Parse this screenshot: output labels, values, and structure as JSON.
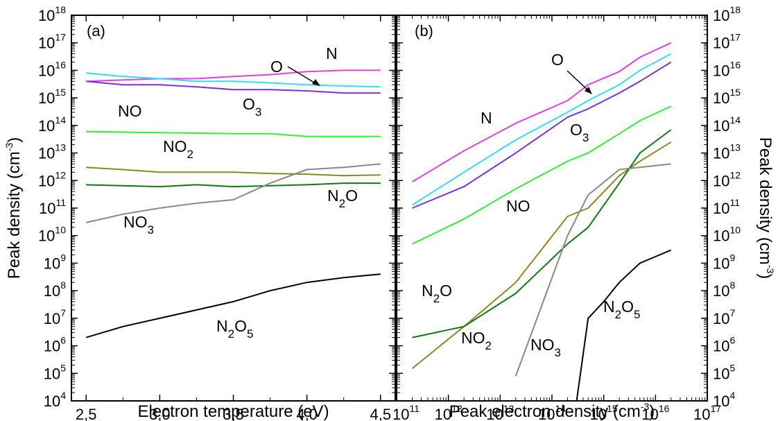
{
  "chart_data": [
    {
      "type": "line",
      "panel_label": "(a)",
      "xlabel": "Electron temperature (eV)",
      "ylabel": "Peak density (cm⁻³)",
      "ylabel_text": "Peak density (cm",
      "ylabel_sup": "-3",
      "ylabel_close": ")",
      "xscale": "linear",
      "yscale": "log",
      "xlim": [
        2.4,
        4.6
      ],
      "ylim": [
        10000,
        1e+18
      ],
      "grid": false,
      "legend": "none (species labeled directly on curves)",
      "x_ticks": [
        "2,5",
        "3,0",
        "3,5",
        "4,0",
        "4,5"
      ],
      "x_tick_values": [
        2.5,
        3.0,
        3.5,
        4.0,
        4.5
      ],
      "series": [
        {
          "name": "N",
          "color": "#e040e0",
          "x": [
            2.5,
            3.0,
            3.25,
            3.5,
            3.75,
            4.0,
            4.25,
            4.5
          ],
          "y": [
            4000000000000000.0,
            5000000000000000.0,
            5000000000000000.0,
            6000000000000000.0,
            7000000000000000.0,
            9000000000000000.0,
            1e+16,
            1e+16
          ]
        },
        {
          "name": "O",
          "color": "#33ddee",
          "x": [
            2.5,
            2.75,
            3.0,
            3.25,
            3.5,
            3.75,
            4.0,
            4.25,
            4.5
          ],
          "y": [
            8000000000000000.0,
            6000000000000000.0,
            5000000000000000.0,
            4000000000000000.0,
            4000000000000000.0,
            3500000000000000.0,
            3000000000000000.0,
            2700000000000000.0,
            2500000000000000.0
          ]
        },
        {
          "name": "O3",
          "color": "#7733dd",
          "x": [
            2.5,
            2.75,
            3.0,
            3.25,
            3.5,
            3.75,
            4.0,
            4.25,
            4.5
          ],
          "y": [
            4000000000000000.0,
            3000000000000000.0,
            3000000000000000.0,
            2500000000000000.0,
            2000000000000000.0,
            2000000000000000.0,
            1800000000000000.0,
            1500000000000000.0,
            1500000000000000.0
          ]
        },
        {
          "name": "NO",
          "color": "#33ee33",
          "x": [
            2.5,
            3.0,
            3.5,
            3.75,
            4.0,
            4.5
          ],
          "y": [
            60000000000000.0,
            55000000000000.0,
            50000000000000.0,
            50000000000000.0,
            40000000000000.0,
            40000000000000.0
          ]
        },
        {
          "name": "NO2",
          "color": "#888822",
          "x": [
            2.5,
            2.75,
            3.0,
            3.25,
            3.5,
            3.75,
            4.0,
            4.25,
            4.5
          ],
          "y": [
            3000000000000.0,
            2500000000000.0,
            2000000000000.0,
            2000000000000.0,
            2000000000000.0,
            1800000000000.0,
            1700000000000.0,
            1500000000000.0,
            1600000000000.0
          ]
        },
        {
          "name": "N2O",
          "color": "#117711",
          "x": [
            2.5,
            3.0,
            3.25,
            3.5,
            4.0,
            4.25,
            4.5
          ],
          "y": [
            700000000000.0,
            600000000000.0,
            700000000000.0,
            600000000000.0,
            700000000000.0,
            800000000000.0,
            800000000000.0
          ]
        },
        {
          "name": "NO3",
          "color": "#888888",
          "x": [
            2.5,
            2.75,
            3.0,
            3.25,
            3.5,
            3.75,
            4.0,
            4.25,
            4.5
          ],
          "y": [
            30000000000.0,
            60000000000.0,
            100000000000.0,
            150000000000.0,
            200000000000.0,
            800000000000.0,
            2500000000000.0,
            3000000000000.0,
            4000000000000.0
          ]
        },
        {
          "name": "N2O5",
          "color": "#000000",
          "x": [
            2.5,
            2.75,
            3.0,
            3.25,
            3.5,
            3.75,
            4.0,
            4.25,
            4.5
          ],
          "y": [
            2000000.0,
            5000000.0,
            10000000.0,
            20000000.0,
            40000000.0,
            100000000.0,
            200000000.0,
            300000000.0,
            400000000.0
          ]
        }
      ],
      "labels": [
        {
          "base": "O",
          "sub1": "",
          "mid": "",
          "sub2": ""
        },
        {
          "base": "N",
          "sub1": "",
          "mid": "",
          "sub2": ""
        },
        {
          "base": "O",
          "sub1": "3",
          "mid": "",
          "sub2": ""
        },
        {
          "base": "NO",
          "sub1": "",
          "mid": "",
          "sub2": ""
        },
        {
          "base": "NO",
          "sub1": "2",
          "mid": "",
          "sub2": ""
        },
        {
          "base": "N",
          "sub1": "2",
          "mid": "O",
          "sub2": ""
        },
        {
          "base": "NO",
          "sub1": "3",
          "mid": "",
          "sub2": ""
        },
        {
          "base": "N",
          "sub1": "2",
          "mid": "O",
          "sub2": "5"
        }
      ]
    },
    {
      "type": "line",
      "panel_label": "(b)",
      "xlabel": "Peak electron density (cm⁻³)",
      "xlabel_text": "Peak electron density (cm",
      "xlabel_sup": "-3",
      "xlabel_close": ")",
      "ylabel": "Peak density (cm⁻³)",
      "ylabel_text": "Peak density (cm",
      "ylabel_sup": "-3",
      "ylabel_close": ")",
      "xscale": "log",
      "yscale": "log",
      "xlim": [
        100000000000.0,
        1e+17
      ],
      "ylim": [
        10000,
        1e+18
      ],
      "grid": false,
      "legend": "none (species labeled directly on curves)",
      "x_ticks_exp": [
        "11",
        "12",
        "13",
        "14",
        "15",
        "16",
        "17"
      ],
      "y_ticks_exp": [
        "4",
        "5",
        "6",
        "7",
        "8",
        "9",
        "10",
        "11",
        "12",
        "13",
        "14",
        "15",
        "16",
        "17",
        "18"
      ],
      "tick_base": "10",
      "series": [
        {
          "name": "N",
          "color": "#e040e0",
          "x": [
            200000000000.0,
            2000000000000.0,
            20000000000000.0,
            200000000000000.0,
            500000000000000.0,
            2000000000000000.0,
            5000000000000000.0,
            2e+16
          ],
          "y": [
            900000000000.0,
            12000000000000.0,
            120000000000000.0,
            800000000000000.0,
            3000000000000000.0,
            9000000000000000.0,
            3e+16,
            1e+17
          ]
        },
        {
          "name": "O",
          "color": "#33ddee",
          "x": [
            200000000000.0,
            2000000000000.0,
            20000000000000.0,
            200000000000000.0,
            500000000000000.0,
            2000000000000000.0,
            5000000000000000.0,
            2e+16
          ],
          "y": [
            130000000000.0,
            2000000000000.0,
            30000000000000.0,
            300000000000000.0,
            800000000000000.0,
            3000000000000000.0,
            1e+16,
            4e+16
          ]
        },
        {
          "name": "O3",
          "color": "#7733dd",
          "x": [
            200000000000.0,
            2000000000000.0,
            20000000000000.0,
            200000000000000.0,
            500000000000000.0,
            2000000000000000.0,
            5000000000000000.0,
            2e+16
          ],
          "y": [
            100000000000.0,
            600000000000.0,
            10000000000000.0,
            200000000000000.0,
            400000000000000.0,
            1500000000000000.0,
            4000000000000000.0,
            2e+16
          ]
        },
        {
          "name": "NO",
          "color": "#33ee33",
          "x": [
            200000000000.0,
            2000000000000.0,
            20000000000000.0,
            200000000000000.0,
            500000000000000.0,
            2000000000000000.0,
            5000000000000000.0,
            2e+16
          ],
          "y": [
            5000000000.0,
            40000000000.0,
            500000000000.0,
            5000000000000.0,
            10000000000000.0,
            50000000000000.0,
            150000000000000.0,
            500000000000000.0
          ]
        },
        {
          "name": "NO2",
          "color": "#888822",
          "x": [
            200000000000.0,
            2000000000000.0,
            20000000000000.0,
            200000000000000.0,
            500000000000000.0,
            2000000000000000.0,
            5000000000000000.0,
            2e+16
          ],
          "y": [
            150000.0,
            5000000.0,
            200000000.0,
            50000000000.0,
            100000000000.0,
            1500000000000.0,
            5000000000000.0,
            25000000000000.0
          ]
        },
        {
          "name": "N2O",
          "color": "#117711",
          "x": [
            200000000000.0,
            2000000000000.0,
            20000000000000.0,
            200000000000000.0,
            500000000000000.0,
            2000000000000000.0,
            5000000000000000.0,
            2e+16
          ],
          "y": [
            2000000.0,
            5000000.0,
            80000000.0,
            5000000000.0,
            20000000000.0,
            800000000000.0,
            10000000000000.0,
            70000000000000.0
          ]
        },
        {
          "name": "NO3",
          "color": "#888888",
          "x": [
            20000000000000.0,
            200000000000000.0,
            500000000000000.0,
            2000000000000000.0,
            2e+16
          ],
          "y": [
            80000.0,
            10000000000.0,
            300000000000.0,
            2500000000000.0,
            4000000000000.0
          ]
        },
        {
          "name": "N2O5",
          "color": "#000000",
          "x": [
            300000000000000.0,
            500000000000000.0,
            1000000000000000.0,
            2000000000000000.0,
            5000000000000000.0,
            2e+16
          ],
          "y": [
            10000.0,
            10000000.0,
            40000000.0,
            200000000.0,
            1000000000.0,
            3000000000.0
          ]
        }
      ],
      "labels": [
        {
          "base": "O",
          "sub1": "",
          "mid": "",
          "sub2": ""
        },
        {
          "base": "N",
          "sub1": "",
          "mid": "",
          "sub2": ""
        },
        {
          "base": "O",
          "sub1": "3",
          "mid": "",
          "sub2": ""
        },
        {
          "base": "NO",
          "sub1": "",
          "mid": "",
          "sub2": ""
        },
        {
          "base": "N",
          "sub1": "2",
          "mid": "O",
          "sub2": ""
        },
        {
          "base": "NO",
          "sub1": "2",
          "mid": "",
          "sub2": ""
        },
        {
          "base": "NO",
          "sub1": "3",
          "mid": "",
          "sub2": ""
        },
        {
          "base": "N",
          "sub1": "2",
          "mid": "O",
          "sub2": "5"
        }
      ]
    }
  ]
}
